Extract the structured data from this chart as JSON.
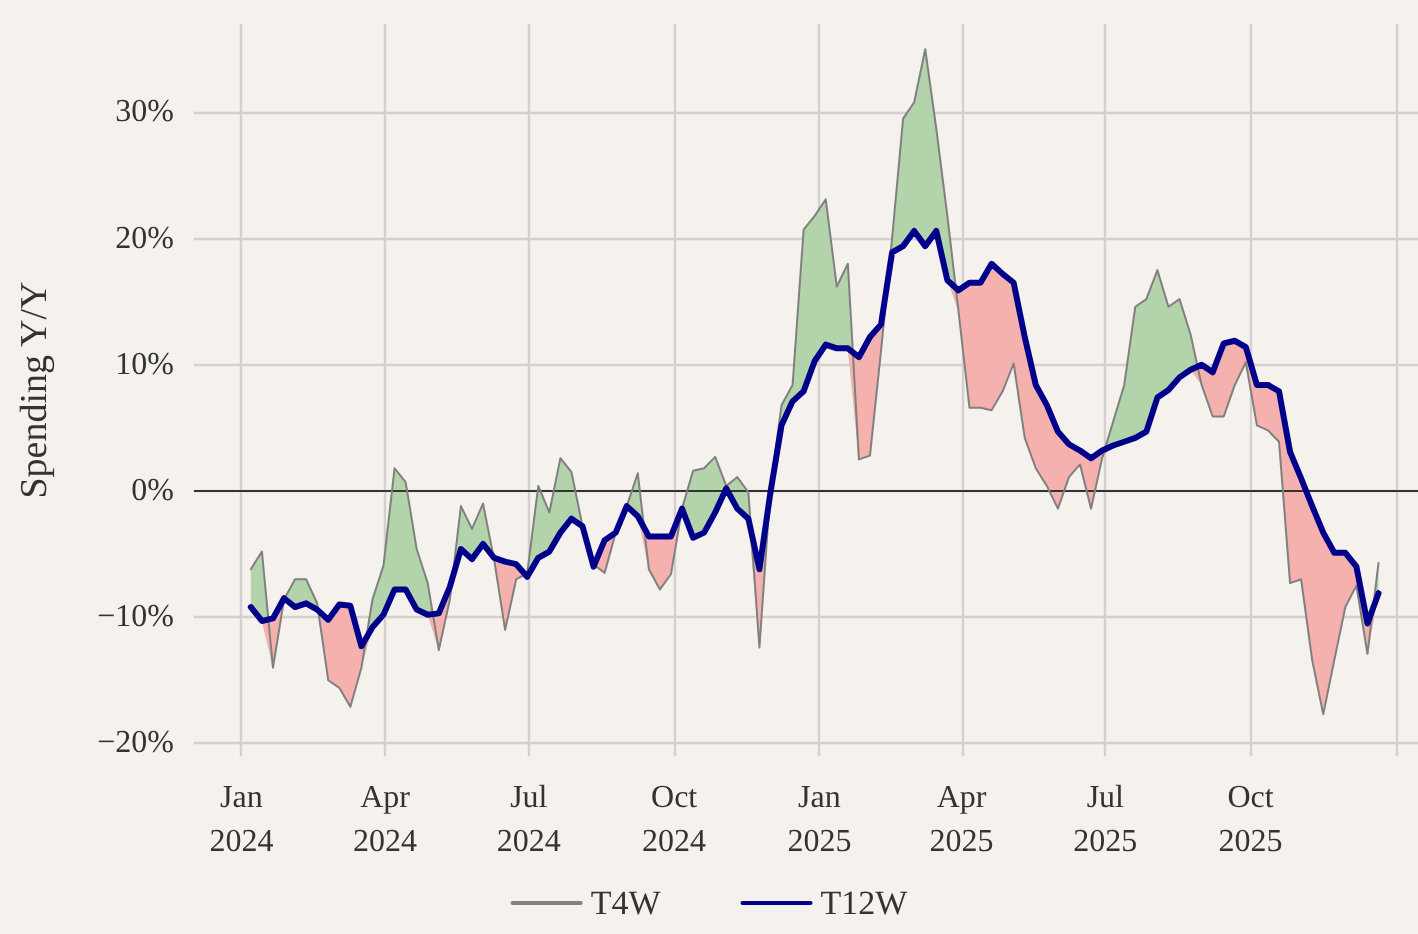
{
  "chart_data": {
    "type": "line",
    "ylabel": "Spending Y/Y",
    "legend": "bottom",
    "grid": true,
    "xlim": [
      "2023-12-02",
      "2026-01-15"
    ],
    "xticks": [
      {
        "value": "2024-01-01",
        "label": "Jan\n2024"
      },
      {
        "value": "2024-04-01",
        "label": "Apr\n2024"
      },
      {
        "value": "2024-07-01",
        "label": "Jul\n2024"
      },
      {
        "value": "2024-10-01",
        "label": "Oct\n2024"
      },
      {
        "value": "2025-01-01",
        "label": "Jan\n2025"
      },
      {
        "value": "2025-04-01",
        "label": "Apr\n2025"
      },
      {
        "value": "2025-07-01",
        "label": "Jul\n2025"
      },
      {
        "value": "2025-10-01",
        "label": "Oct\n2025"
      },
      {
        "value": "2026-01-01",
        "label": null
      }
    ],
    "ylim": [
      -21,
      37
    ],
    "yticks": [
      {
        "value": -20,
        "label": "−20%"
      },
      {
        "value": -10,
        "label": "−10%"
      },
      {
        "value": 0,
        "label": "0%"
      },
      {
        "value": 10,
        "label": "10%"
      },
      {
        "value": 20,
        "label": "20%"
      },
      {
        "value": 30,
        "label": "30%"
      }
    ],
    "ref_lines": [
      {
        "axis": "y",
        "value": 0,
        "color": "#333333"
      }
    ],
    "x": [
      "2024-01-07",
      "2024-01-14",
      "2024-01-21",
      "2024-01-28",
      "2024-02-04",
      "2024-02-11",
      "2024-02-18",
      "2024-02-25",
      "2024-03-03",
      "2024-03-10",
      "2024-03-17",
      "2024-03-24",
      "2024-03-31",
      "2024-04-07",
      "2024-04-14",
      "2024-04-21",
      "2024-04-28",
      "2024-05-05",
      "2024-05-12",
      "2024-05-19",
      "2024-05-26",
      "2024-06-02",
      "2024-06-09",
      "2024-06-16",
      "2024-06-23",
      "2024-06-30",
      "2024-07-07",
      "2024-07-14",
      "2024-07-21",
      "2024-07-28",
      "2024-08-04",
      "2024-08-11",
      "2024-08-18",
      "2024-08-25",
      "2024-09-01",
      "2024-09-08",
      "2024-09-15",
      "2024-09-22",
      "2024-09-29",
      "2024-10-06",
      "2024-10-13",
      "2024-10-20",
      "2024-10-27",
      "2024-11-03",
      "2024-11-10",
      "2024-11-17",
      "2024-11-24",
      "2024-12-01",
      "2024-12-08",
      "2024-12-15",
      "2024-12-22",
      "2024-12-29",
      "2025-01-05",
      "2025-01-12",
      "2025-01-19",
      "2025-01-26",
      "2025-02-02",
      "2025-02-09",
      "2025-02-16",
      "2025-02-23",
      "2025-03-02",
      "2025-03-09",
      "2025-03-16",
      "2025-03-23",
      "2025-03-30",
      "2025-04-06",
      "2025-04-13",
      "2025-04-20",
      "2025-04-27",
      "2025-05-04",
      "2025-05-11",
      "2025-05-18",
      "2025-05-25",
      "2025-06-01",
      "2025-06-08",
      "2025-06-15",
      "2025-06-22",
      "2025-06-29",
      "2025-07-06",
      "2025-07-13",
      "2025-07-20",
      "2025-07-27",
      "2025-08-03",
      "2025-08-10",
      "2025-08-17",
      "2025-08-24",
      "2025-08-31",
      "2025-09-07",
      "2025-09-14",
      "2025-09-21",
      "2025-09-28",
      "2025-10-05",
      "2025-10-12",
      "2025-10-19",
      "2025-10-26",
      "2025-11-02",
      "2025-11-09",
      "2025-11-16",
      "2025-11-23",
      "2025-11-30",
      "2025-12-07",
      "2025-12-14",
      "2025-12-21"
    ],
    "series": [
      {
        "name": "T4W",
        "color": "#808080",
        "lower": [
          -9.2,
          -10.3,
          -14.0,
          -8.6,
          -9.2,
          -8.9,
          -9.4,
          -15.0,
          -15.6,
          -17.1,
          -14.0,
          -10.8,
          -9.8,
          -7.8,
          -7.8,
          -9.4,
          -9.8,
          -12.6,
          -8.6,
          -4.6,
          -5.4,
          -4.2,
          -5.4,
          -11.0,
          -7.0,
          -6.8,
          -5.3,
          -4.8,
          -3.3,
          -2.2,
          -2.8,
          -6.0,
          -6.5,
          -3.3,
          -1.2,
          -2.0,
          -6.2,
          -7.8,
          -6.6,
          -1.4,
          -3.7,
          -3.3,
          -1.7,
          0.2,
          -1.4,
          -2.2,
          -12.4,
          -0.1,
          5.2,
          7.1,
          7.9,
          10.3,
          11.6,
          11.3,
          11.3,
          2.5,
          2.8,
          11.1,
          18.9,
          19.4,
          20.6,
          19.4,
          20.6,
          16.7,
          14.3,
          6.6,
          6.6,
          6.4,
          7.9,
          10.1,
          4.2,
          1.8,
          0.4,
          -1.4,
          1.1,
          2.1,
          -1.4,
          2.6,
          3.6,
          3.9,
          4.2,
          4.7,
          7.4,
          8.0,
          9.0,
          9.6,
          8.4,
          5.9,
          5.9,
          8.4,
          10.2,
          5.2,
          4.8,
          3.9,
          -7.3,
          -7.0,
          -13.4,
          -17.7,
          -13.4,
          -9.2,
          -7.5,
          -12.9,
          -8.1
        ],
        "upper": [
          -6.2,
          -4.8,
          -14.0,
          -8.6,
          -7.0,
          -7.0,
          -8.9,
          -15.0,
          -15.6,
          -17.1,
          -14.0,
          -8.6,
          -5.9,
          1.8,
          0.7,
          -4.6,
          -7.3,
          -12.6,
          -8.6,
          -1.2,
          -3.0,
          -1.0,
          -5.4,
          -11.0,
          -7.0,
          -6.5,
          0.4,
          -1.7,
          2.6,
          1.5,
          -2.8,
          -5.8,
          -6.5,
          -3.3,
          -1.2,
          1.4,
          -6.2,
          -7.8,
          -6.6,
          -1.4,
          1.6,
          1.8,
          2.7,
          0.4,
          1.1,
          -0.1,
          -12.4,
          0.2,
          6.8,
          8.4,
          20.7,
          21.8,
          23.1,
          16.2,
          18.0,
          2.5,
          2.8,
          11.1,
          20.0,
          29.5,
          30.8,
          35.0,
          28.7,
          21.8,
          14.3,
          6.6,
          6.6,
          6.4,
          7.9,
          10.1,
          4.2,
          1.8,
          0.4,
          -1.4,
          1.1,
          2.1,
          -1.4,
          2.6,
          5.5,
          8.4,
          14.6,
          15.2,
          17.5,
          14.6,
          15.2,
          12.4,
          8.4,
          5.9,
          5.9,
          8.4,
          10.2,
          5.2,
          4.8,
          3.9,
          -7.3,
          -7.0,
          -13.4,
          -17.7,
          -13.4,
          -9.2,
          -7.5,
          -12.9,
          -5.7
        ],
        "values": [
          -6.2,
          -4.8,
          -14.0,
          -8.6,
          -7.0,
          -7.0,
          -8.9,
          -15.0,
          -15.6,
          -17.1,
          -14.0,
          -8.6,
          -5.9,
          1.8,
          0.7,
          -4.6,
          -7.3,
          -12.6,
          -8.6,
          -1.2,
          -3.0,
          -1.0,
          -5.4,
          -11.0,
          -7.0,
          -6.5,
          0.4,
          -1.7,
          2.6,
          1.5,
          -2.8,
          -5.8,
          -6.5,
          -3.3,
          -1.2,
          1.4,
          -6.2,
          -7.8,
          -6.6,
          -1.4,
          1.6,
          1.8,
          2.7,
          0.4,
          1.1,
          -0.1,
          -12.4,
          0.2,
          6.8,
          8.4,
          20.7,
          21.8,
          23.1,
          16.2,
          18.0,
          2.5,
          2.8,
          11.1,
          20.0,
          29.5,
          30.8,
          35.0,
          28.7,
          21.8,
          14.3,
          6.6,
          6.6,
          6.4,
          7.9,
          10.1,
          4.2,
          1.8,
          0.4,
          -1.4,
          1.1,
          2.1,
          -1.4,
          2.6,
          5.5,
          8.4,
          14.6,
          15.2,
          17.5,
          14.6,
          15.2,
          12.4,
          8.4,
          5.9,
          5.9,
          8.4,
          10.2,
          5.2,
          4.8,
          3.9,
          -7.3,
          -7.0,
          -13.4,
          -17.7,
          -13.4,
          -9.2,
          -7.5,
          -12.9,
          -5.7
        ]
      },
      {
        "name": "T12W",
        "color": "#00008b",
        "lower": [
          -9.2,
          -10.3,
          -14.0,
          -8.6,
          -9.2,
          -8.9,
          -9.4,
          -15.0,
          -15.6,
          -17.1,
          -14.0,
          -10.8,
          -9.8,
          -7.8,
          -7.8,
          -9.4,
          -9.8,
          -12.6,
          -8.6,
          -4.6,
          -5.4,
          -4.2,
          -5.4,
          -11.0,
          -7.0,
          -6.8,
          -5.3,
          -4.8,
          -3.3,
          -2.2,
          -2.8,
          -6.0,
          -6.5,
          -3.3,
          -1.2,
          -2.0,
          -6.2,
          -7.8,
          -6.6,
          -1.4,
          -3.7,
          -3.3,
          -1.7,
          0.2,
          -1.4,
          -2.2,
          -12.4,
          -0.1,
          5.2,
          7.1,
          7.9,
          10.3,
          11.6,
          11.3,
          11.3,
          2.5,
          2.8,
          11.1,
          18.9,
          19.4,
          20.6,
          19.4,
          20.6,
          16.7,
          14.3,
          6.6,
          6.6,
          6.4,
          7.9,
          10.1,
          4.2,
          1.8,
          0.4,
          -1.4,
          1.1,
          2.1,
          -1.4,
          2.6,
          3.6,
          3.9,
          4.2,
          4.7,
          7.4,
          8.0,
          9.0,
          9.6,
          8.4,
          5.9,
          5.9,
          8.4,
          10.2,
          5.2,
          4.8,
          3.9,
          -7.3,
          -7.0,
          -13.4,
          -17.7,
          -13.4,
          -9.2,
          -7.5,
          -12.9,
          -8.1
        ],
        "upper": [
          -9.2,
          -10.3,
          -10.1,
          -8.5,
          -9.2,
          -8.9,
          -9.4,
          -10.2,
          -9.0,
          -9.1,
          -12.3,
          -10.8,
          -9.8,
          -7.8,
          -7.8,
          -9.4,
          -9.8,
          -9.7,
          -7.6,
          -4.6,
          -5.4,
          -4.2,
          -5.3,
          -5.6,
          -5.8,
          -6.8,
          -5.3,
          -4.8,
          -3.3,
          -2.2,
          -2.8,
          -6.0,
          -3.9,
          -3.3,
          -1.2,
          -2.0,
          -3.6,
          -3.6,
          -3.6,
          -1.4,
          -3.7,
          -3.3,
          -1.7,
          0.2,
          -1.4,
          -2.2,
          -6.2,
          -0.1,
          5.2,
          7.1,
          7.9,
          10.3,
          11.6,
          11.3,
          11.3,
          10.6,
          12.2,
          13.2,
          18.9,
          19.4,
          20.6,
          19.4,
          20.6,
          16.7,
          15.9,
          16.5,
          16.5,
          18.0,
          17.2,
          16.5,
          12.2,
          8.4,
          6.8,
          4.7,
          3.7,
          3.2,
          2.6,
          3.2,
          3.6,
          3.9,
          4.2,
          4.7,
          7.4,
          8.0,
          9.0,
          9.6,
          10.0,
          9.4,
          11.7,
          11.9,
          11.4,
          8.4,
          8.4,
          7.9,
          3.1,
          1.0,
          -1.2,
          -3.3,
          -4.9,
          -4.9,
          -6.0,
          -10.5,
          -8.1
        ],
        "values": [
          -9.2,
          -10.3,
          -10.1,
          -8.5,
          -9.2,
          -8.9,
          -9.4,
          -10.2,
          -9.0,
          -9.1,
          -12.3,
          -10.8,
          -9.8,
          -7.8,
          -7.8,
          -9.4,
          -9.8,
          -9.7,
          -7.6,
          -4.6,
          -5.4,
          -4.2,
          -5.3,
          -5.6,
          -5.8,
          -6.8,
          -5.3,
          -4.8,
          -3.3,
          -2.2,
          -2.8,
          -6.0,
          -3.9,
          -3.3,
          -1.2,
          -2.0,
          -3.6,
          -3.6,
          -3.6,
          -1.4,
          -3.7,
          -3.3,
          -1.7,
          0.2,
          -1.4,
          -2.2,
          -6.2,
          -0.1,
          5.2,
          7.1,
          7.9,
          10.3,
          11.6,
          11.3,
          11.3,
          10.6,
          12.2,
          13.2,
          18.9,
          19.4,
          20.6,
          19.4,
          20.6,
          16.7,
          15.9,
          16.5,
          16.5,
          18.0,
          17.2,
          16.5,
          12.2,
          8.4,
          6.8,
          4.7,
          3.7,
          3.2,
          2.6,
          3.2,
          3.6,
          3.9,
          4.2,
          4.7,
          7.4,
          8.0,
          9.0,
          9.6,
          10.0,
          9.4,
          11.7,
          11.9,
          11.4,
          8.4,
          8.4,
          7.9,
          3.1,
          1.0,
          -1.2,
          -3.3,
          -4.9,
          -4.9,
          -6.0,
          -10.5,
          -8.1
        ]
      }
    ]
  }
}
